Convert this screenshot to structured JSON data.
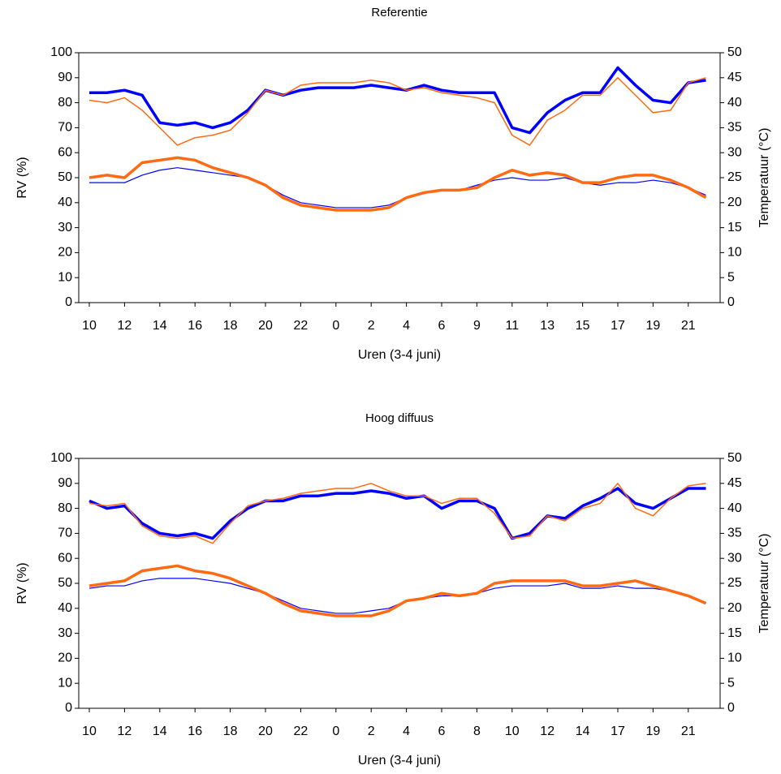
{
  "chart_data": [
    {
      "type": "line",
      "title": "Referentie",
      "x_label": "Uren (3-4 juni)",
      "y_label": "RV (%)",
      "y2_label": "Temperatuur (°C)",
      "categories": [
        "10",
        null,
        "12",
        null,
        "14",
        null,
        "16",
        null,
        "18",
        null,
        "20",
        null,
        "22",
        null,
        "0",
        null,
        "2",
        null,
        "4",
        null,
        "6",
        null,
        "9",
        null,
        "11",
        null,
        "13",
        null,
        "15",
        null,
        "17",
        null,
        "19",
        null,
        "21",
        null
      ],
      "ylim": [
        0,
        100
      ],
      "yticks": [
        0,
        10,
        20,
        30,
        40,
        50,
        60,
        70,
        80,
        90,
        100
      ],
      "y2lim": [
        0,
        50
      ],
      "y2ticks": [
        0,
        5,
        10,
        15,
        20,
        25,
        30,
        35,
        40,
        45,
        50
      ],
      "series": [
        {
          "color": "#0000ff",
          "values": [
            84,
            84,
            85,
            83,
            72,
            71,
            72,
            70,
            72,
            77,
            85,
            83,
            85,
            86,
            86,
            86,
            87,
            86,
            85,
            87,
            85,
            84,
            84,
            84,
            70,
            68,
            76,
            81,
            84,
            84,
            94,
            87,
            81,
            80,
            88,
            89
          ]
        },
        {
          "color": "#ff6a13",
          "values": [
            81,
            80,
            82,
            77,
            70,
            63,
            66,
            67,
            69,
            76,
            85,
            83,
            87,
            88,
            88,
            88,
            89,
            88,
            85,
            86,
            84,
            83,
            82,
            80,
            67,
            63,
            73,
            77,
            83,
            83,
            90,
            83,
            76,
            77,
            88,
            90
          ]
        },
        {
          "color": "#0000ff",
          "axis": "y2",
          "values": [
            24,
            24,
            24,
            25.5,
            26.5,
            27,
            26.5,
            26,
            25.5,
            25,
            23.5,
            21.5,
            20,
            19.5,
            19,
            19,
            19,
            19.5,
            21,
            22,
            22.5,
            22.5,
            23.5,
            24.5,
            25,
            24.5,
            24.5,
            25,
            24,
            23.5,
            24,
            24,
            24.5,
            24,
            23,
            21.5
          ]
        },
        {
          "color": "#ff6a13",
          "axis": "y2",
          "values": [
            25,
            25.5,
            25,
            28,
            28.5,
            29,
            28.5,
            27,
            26,
            25,
            23.5,
            21,
            19.5,
            19,
            18.5,
            18.5,
            18.5,
            19,
            21,
            22,
            22.5,
            22.5,
            23,
            25,
            26.5,
            25.5,
            26,
            25.5,
            24,
            24,
            25,
            25.5,
            25.5,
            24.5,
            23,
            21
          ]
        }
      ]
    },
    {
      "type": "line",
      "title": "Hoog diffuus",
      "x_label": "Uren (3-4 juni)",
      "y_label": "RV (%)",
      "y2_label": "Temperatuur (°C)",
      "categories": [
        "10",
        null,
        "12",
        null,
        "14",
        null,
        "16",
        null,
        "18",
        null,
        "20",
        null,
        "22",
        null,
        "0",
        null,
        "2",
        null,
        "4",
        null,
        "6",
        null,
        "8",
        null,
        "10",
        null,
        "12",
        null,
        "14",
        null,
        "17",
        null,
        "19",
        null,
        "21",
        null
      ],
      "ylim": [
        0,
        100
      ],
      "yticks": [
        0,
        10,
        20,
        30,
        40,
        50,
        60,
        70,
        80,
        90,
        100
      ],
      "y2lim": [
        0,
        50
      ],
      "y2ticks": [
        0,
        5,
        10,
        15,
        20,
        25,
        30,
        35,
        40,
        45,
        50
      ],
      "series": [
        {
          "color": "#0000ff",
          "values": [
            83,
            80,
            81,
            74,
            70,
            69,
            70,
            68,
            75,
            80,
            83,
            83,
            85,
            85,
            86,
            86,
            87,
            86,
            84,
            85,
            80,
            83,
            83,
            80,
            68,
            70,
            77,
            76,
            81,
            84,
            88,
            82,
            80,
            84,
            88,
            88
          ]
        },
        {
          "color": "#ff6a13",
          "values": [
            82,
            81,
            82,
            73,
            69,
            68,
            69,
            66,
            74,
            81,
            83,
            84,
            86,
            87,
            88,
            88,
            90,
            87,
            85,
            85,
            82,
            84,
            84,
            78,
            68,
            69,
            77,
            75,
            80,
            82,
            90,
            80,
            77,
            84,
            89,
            90
          ]
        },
        {
          "color": "#0000ff",
          "axis": "y2",
          "values": [
            24,
            24.5,
            24.5,
            25.5,
            26,
            26,
            26,
            25.5,
            25,
            24,
            23,
            21.5,
            20,
            19.5,
            19,
            19,
            19.5,
            20,
            21.5,
            22,
            22.5,
            22.5,
            23,
            24,
            24.5,
            24.5,
            24.5,
            25,
            24,
            24,
            24.5,
            24,
            24,
            23.5,
            22.5,
            21
          ]
        },
        {
          "color": "#ff6a13",
          "axis": "y2",
          "values": [
            24.5,
            25,
            25.5,
            27.5,
            28,
            28.5,
            27.5,
            27,
            26,
            24.5,
            23,
            21,
            19.5,
            19,
            18.5,
            18.5,
            18.5,
            19.5,
            21.5,
            22,
            23,
            22.5,
            23,
            25,
            25.5,
            25.5,
            25.5,
            25.5,
            24.5,
            24.5,
            25,
            25.5,
            24.5,
            23.5,
            22.5,
            21
          ]
        }
      ]
    }
  ]
}
